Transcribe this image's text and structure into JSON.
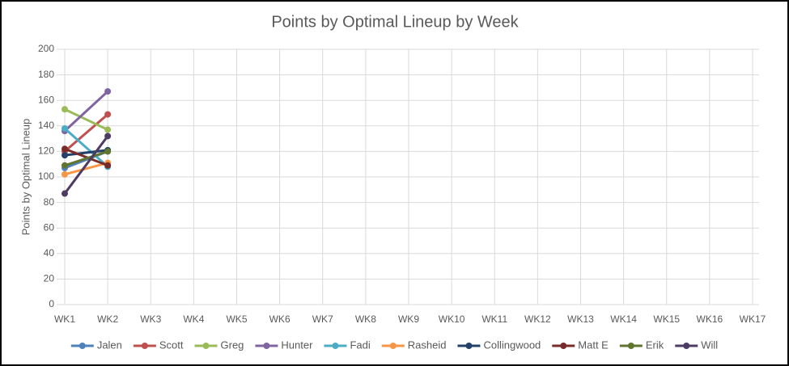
{
  "chart_data": {
    "type": "line",
    "title": "Points by Optimal Lineup by Week",
    "y_label": "Points by Optimal Lineup",
    "categories": [
      "WK1",
      "WK2",
      "WK3",
      "WK4",
      "WK5",
      "WK6",
      "WK7",
      "WK8",
      "WK9",
      "WK10",
      "WK11",
      "WK12",
      "WK13",
      "WK14",
      "WK15",
      "WK16",
      "WK17"
    ],
    "series": [
      {
        "name": "Jalen",
        "color": "#4f81bd",
        "values": [
          107,
          120,
          null,
          null,
          null,
          null,
          null,
          null,
          null,
          null,
          null,
          null,
          null,
          null,
          null,
          null,
          null
        ]
      },
      {
        "name": "Scott",
        "color": "#c0504d",
        "values": [
          120,
          149,
          null,
          null,
          null,
          null,
          null,
          null,
          null,
          null,
          null,
          null,
          null,
          null,
          null,
          null,
          null
        ]
      },
      {
        "name": "Greg",
        "color": "#9bbb59",
        "values": [
          153,
          137,
          null,
          null,
          null,
          null,
          null,
          null,
          null,
          null,
          null,
          null,
          null,
          null,
          null,
          null,
          null
        ]
      },
      {
        "name": "Hunter",
        "color": "#8064a2",
        "values": [
          136,
          167,
          null,
          null,
          null,
          null,
          null,
          null,
          null,
          null,
          null,
          null,
          null,
          null,
          null,
          null,
          null
        ]
      },
      {
        "name": "Fadi",
        "color": "#4bacc6",
        "values": [
          138,
          108,
          null,
          null,
          null,
          null,
          null,
          null,
          null,
          null,
          null,
          null,
          null,
          null,
          null,
          null,
          null
        ]
      },
      {
        "name": "Rasheid",
        "color": "#f79646",
        "values": [
          102,
          111,
          null,
          null,
          null,
          null,
          null,
          null,
          null,
          null,
          null,
          null,
          null,
          null,
          null,
          null,
          null
        ]
      },
      {
        "name": "Collingwood",
        "color": "#23416b",
        "values": [
          117,
          121,
          null,
          null,
          null,
          null,
          null,
          null,
          null,
          null,
          null,
          null,
          null,
          null,
          null,
          null,
          null
        ]
      },
      {
        "name": "Matt E",
        "color": "#772c2a",
        "values": [
          122,
          109,
          null,
          null,
          null,
          null,
          null,
          null,
          null,
          null,
          null,
          null,
          null,
          null,
          null,
          null,
          null
        ]
      },
      {
        "name": "Erik",
        "color": "#5f7530",
        "values": [
          109,
          120,
          null,
          null,
          null,
          null,
          null,
          null,
          null,
          null,
          null,
          null,
          null,
          null,
          null,
          null,
          null
        ]
      },
      {
        "name": "Will",
        "color": "#4d3b62",
        "values": [
          87,
          132,
          null,
          null,
          null,
          null,
          null,
          null,
          null,
          null,
          null,
          null,
          null,
          null,
          null,
          null,
          null
        ]
      }
    ],
    "ylim": [
      0,
      200
    ],
    "yticks": [
      0,
      20,
      40,
      60,
      80,
      100,
      120,
      140,
      160,
      180,
      200
    ],
    "grid": true,
    "legend": "bottom"
  }
}
